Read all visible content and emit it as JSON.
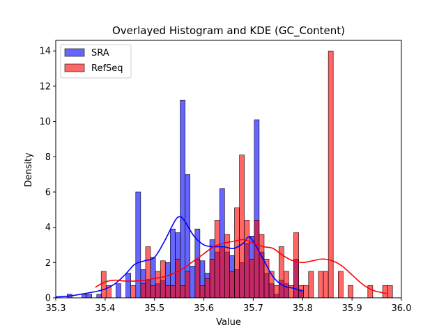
{
  "chart_data": {
    "type": "bar",
    "subtype": "histogram-with-kde",
    "title": "Overlayed Histogram and KDE (GC_Content)",
    "xlabel": "Value",
    "ylabel": "Density",
    "xlim": [
      35.3,
      36.0
    ],
    "ylim": [
      0,
      14.6
    ],
    "xticks": [
      35.3,
      35.4,
      35.5,
      35.6,
      35.7,
      35.8,
      35.9,
      36.0
    ],
    "xtick_labels": [
      "35.3",
      "35.4",
      "35.5",
      "35.6",
      "35.7",
      "35.8",
      "35.9",
      "36.0"
    ],
    "yticks": [
      0,
      2,
      4,
      6,
      8,
      10,
      12,
      14
    ],
    "ytick_labels": [
      "0",
      "2",
      "4",
      "6",
      "8",
      "10",
      "12",
      "14"
    ],
    "grid": false,
    "legend": {
      "position": "top-left",
      "entries": [
        "SRA",
        "RefSeq"
      ]
    },
    "series": [
      {
        "name": "SRA",
        "color": "#0000ff",
        "bin_width": 0.00995,
        "bins": [
          [
            35.323,
            0.2
          ],
          [
            35.353,
            0.2
          ],
          [
            35.363,
            0.2
          ],
          [
            35.383,
            0.2
          ],
          [
            35.422,
            0.8
          ],
          [
            35.442,
            1.4
          ],
          [
            35.462,
            6.0
          ],
          [
            35.472,
            1.6
          ],
          [
            35.482,
            1.0
          ],
          [
            35.492,
            2.3
          ],
          [
            35.502,
            0.8
          ],
          [
            35.512,
            1.0
          ],
          [
            35.522,
            2.0
          ],
          [
            35.532,
            3.9
          ],
          [
            35.542,
            3.7
          ],
          [
            35.552,
            11.2
          ],
          [
            35.562,
            7.0
          ],
          [
            35.572,
            1.8
          ],
          [
            35.582,
            3.9
          ],
          [
            35.592,
            2.1
          ],
          [
            35.602,
            1.4
          ],
          [
            35.612,
            3.3
          ],
          [
            35.622,
            2.6
          ],
          [
            35.632,
            6.2
          ],
          [
            35.642,
            2.6
          ],
          [
            35.652,
            2.4
          ],
          [
            35.662,
            1.6
          ],
          [
            35.672,
            2.0
          ],
          [
            35.682,
            3.1
          ],
          [
            35.692,
            3.5
          ],
          [
            35.702,
            10.1
          ],
          [
            35.712,
            2.6
          ],
          [
            35.722,
            1.4
          ],
          [
            35.732,
            0.8
          ],
          [
            35.742,
            0.2
          ],
          [
            35.752,
            1.0
          ],
          [
            35.762,
            0.8
          ],
          [
            35.782,
            2.2
          ],
          [
            35.792,
            0.4
          ]
        ],
        "kde": {
          "x": [
            35.3,
            35.32,
            35.34,
            35.36,
            35.38,
            35.4,
            35.42,
            35.44,
            35.46,
            35.48,
            35.5,
            35.52,
            35.54,
            35.55,
            35.56,
            35.58,
            35.6,
            35.62,
            35.64,
            35.66,
            35.68,
            35.69,
            35.7,
            35.72,
            35.74,
            35.76,
            35.78,
            35.8
          ],
          "y": [
            0.05,
            0.08,
            0.15,
            0.25,
            0.35,
            0.5,
            0.8,
            1.3,
            1.9,
            2.1,
            2.3,
            3.2,
            4.3,
            4.6,
            4.4,
            3.5,
            3.0,
            2.9,
            2.9,
            2.8,
            3.1,
            3.45,
            3.2,
            2.2,
            1.2,
            0.7,
            0.55,
            0.4
          ]
        }
      },
      {
        "name": "RefSeq",
        "color": "#ff0000",
        "bin_width": 0.00995,
        "bins": [
          [
            35.392,
            1.5
          ],
          [
            35.402,
            0.7
          ],
          [
            35.452,
            0.7
          ],
          [
            35.472,
            0.8
          ],
          [
            35.482,
            2.9
          ],
          [
            35.492,
            0.7
          ],
          [
            35.502,
            1.5
          ],
          [
            35.512,
            2.1
          ],
          [
            35.522,
            0.7
          ],
          [
            35.532,
            0.7
          ],
          [
            35.542,
            2.2
          ],
          [
            35.552,
            0.7
          ],
          [
            35.562,
            1.5
          ],
          [
            35.582,
            2.2
          ],
          [
            35.592,
            0.7
          ],
          [
            35.602,
            1.1
          ],
          [
            35.612,
            2.2
          ],
          [
            35.622,
            4.4
          ],
          [
            35.632,
            2.9
          ],
          [
            35.642,
            3.6
          ],
          [
            35.652,
            1.5
          ],
          [
            35.662,
            5.1
          ],
          [
            35.672,
            8.1
          ],
          [
            35.682,
            4.4
          ],
          [
            35.692,
            2.2
          ],
          [
            35.702,
            4.4
          ],
          [
            35.712,
            3.6
          ],
          [
            35.722,
            2.2
          ],
          [
            35.732,
            1.5
          ],
          [
            35.742,
            0.7
          ],
          [
            35.752,
            2.9
          ],
          [
            35.762,
            1.5
          ],
          [
            35.772,
            0.7
          ],
          [
            35.782,
            3.7
          ],
          [
            35.792,
            0.7
          ],
          [
            35.802,
            0.7
          ],
          [
            35.812,
            1.5
          ],
          [
            35.832,
            1.5
          ],
          [
            35.842,
            1.5
          ],
          [
            35.852,
            14.0
          ],
          [
            35.872,
            1.5
          ],
          [
            35.892,
            0.7
          ],
          [
            35.932,
            0.7
          ],
          [
            35.962,
            0.7
          ],
          [
            35.972,
            0.7
          ]
        ],
        "kde": {
          "x": [
            35.38,
            35.4,
            35.42,
            35.44,
            35.46,
            35.48,
            35.5,
            35.52,
            35.54,
            35.56,
            35.58,
            35.6,
            35.62,
            35.64,
            35.66,
            35.68,
            35.7,
            35.72,
            35.74,
            35.76,
            35.78,
            35.8,
            35.82,
            35.84,
            35.86,
            35.88,
            35.9,
            35.92,
            35.94,
            35.96,
            35.97
          ],
          "y": [
            0.6,
            0.9,
            1.0,
            0.95,
            0.95,
            1.0,
            1.1,
            1.2,
            1.4,
            1.7,
            2.1,
            2.5,
            2.9,
            3.1,
            3.2,
            3.3,
            3.1,
            2.9,
            2.8,
            2.4,
            2.1,
            2.0,
            2.1,
            2.2,
            2.1,
            1.8,
            1.3,
            0.8,
            0.45,
            0.3,
            0.25
          ]
        }
      }
    ]
  }
}
